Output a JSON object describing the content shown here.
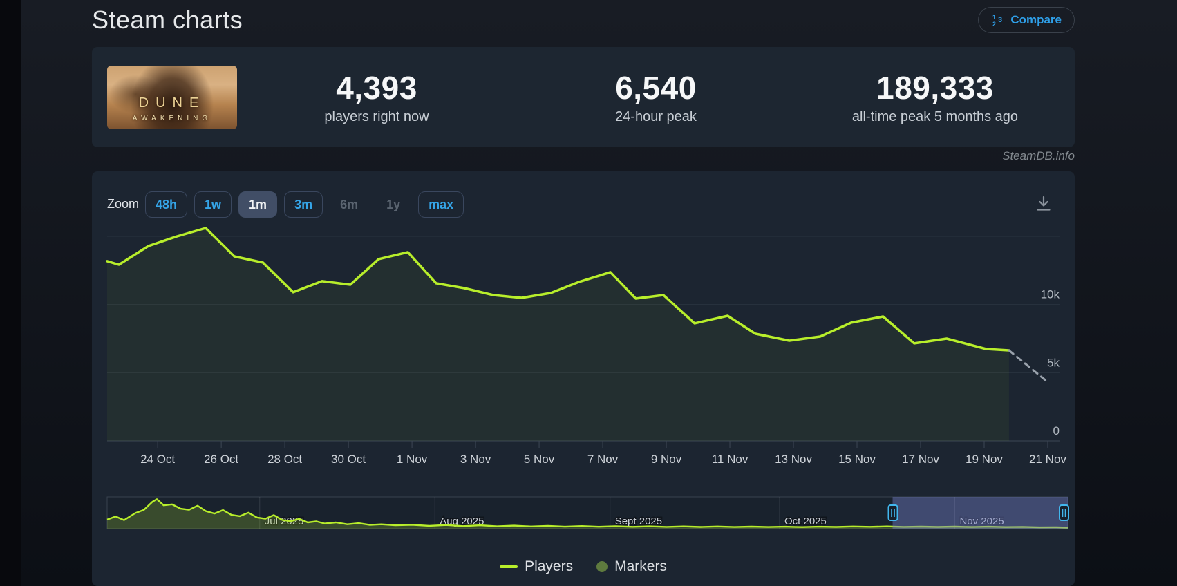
{
  "page": {
    "title": "Steam charts",
    "watermark": "SteamDB.info"
  },
  "compare": {
    "label": "Compare",
    "icon": "ordered-list-123",
    "color": "#2f9fe8"
  },
  "game": {
    "capsule_line1": "DUNE",
    "capsule_line2": "AWAKENING"
  },
  "stats": [
    {
      "value": "4,393",
      "label": "players right now"
    },
    {
      "value": "6,540",
      "label": "24-hour peak"
    },
    {
      "value": "189,333",
      "label": "all-time peak 5 months ago"
    }
  ],
  "toolbar": {
    "zoom_label": "Zoom",
    "buttons": [
      {
        "label": "48h",
        "state": "normal"
      },
      {
        "label": "1w",
        "state": "normal"
      },
      {
        "label": "1m",
        "state": "selected"
      },
      {
        "label": "3m",
        "state": "normal"
      },
      {
        "label": "6m",
        "state": "disabled"
      },
      {
        "label": "1y",
        "state": "disabled"
      },
      {
        "label": "max",
        "state": "normal"
      }
    ],
    "download_icon": "arrow-down-to-line"
  },
  "chart_data": {
    "type": "line",
    "series_name": "Players",
    "line_color": "#b8ee2b",
    "fill_color": "rgba(184,238,43,0.05)",
    "dashed_tail_color": "#9aa2ac",
    "ylim": [
      0,
      16220
    ],
    "y_gridlines": [
      5000,
      10000,
      15000
    ],
    "y_tick_labels": [
      {
        "label": "0",
        "value": 0
      },
      {
        "label": "5k",
        "value": 5000
      },
      {
        "label": "10k",
        "value": 10000
      }
    ],
    "x_range_days": 29.96,
    "x_tick_labels": [
      "24 Oct",
      "26 Oct",
      "28 Oct",
      "30 Oct",
      "1 Nov",
      "3 Nov",
      "5 Nov",
      "7 Nov",
      "9 Nov",
      "11 Nov",
      "13 Nov",
      "15 Nov",
      "17 Nov",
      "19 Nov",
      "21 Nov"
    ],
    "first_tick_day": 1.59,
    "tick_step_days": 2,
    "points": [
      [
        0,
        13180
      ],
      [
        0.37,
        12920
      ],
      [
        1.3,
        14290
      ],
      [
        2.2,
        15000
      ],
      [
        3.1,
        15610
      ],
      [
        4.0,
        13530
      ],
      [
        4.9,
        13080
      ],
      [
        5.85,
        10900
      ],
      [
        6.76,
        11710
      ],
      [
        7.65,
        11450
      ],
      [
        8.54,
        13330
      ],
      [
        9.46,
        13840
      ],
      [
        10.35,
        11560
      ],
      [
        11.24,
        11200
      ],
      [
        12.15,
        10690
      ],
      [
        13.04,
        10490
      ],
      [
        13.96,
        10850
      ],
      [
        14.85,
        11660
      ],
      [
        15.83,
        12370
      ],
      [
        16.63,
        10440
      ],
      [
        17.5,
        10690
      ],
      [
        18.48,
        8620
      ],
      [
        19.52,
        9170
      ],
      [
        20.39,
        7860
      ],
      [
        21.46,
        7350
      ],
      [
        22.43,
        7650
      ],
      [
        23.41,
        8670
      ],
      [
        24.41,
        9120
      ],
      [
        25.39,
        7150
      ],
      [
        26.41,
        7500
      ],
      [
        27.65,
        6740
      ],
      [
        28.37,
        6640
      ]
    ],
    "dashed_tail": [
      [
        28.37,
        6640
      ],
      [
        29.55,
        4393
      ]
    ]
  },
  "navigator_data": {
    "type": "area",
    "line_color": "#b8ee2b",
    "fill_color": "rgba(184,238,43,0.20)",
    "selection_color": "rgba(112,124,196,0.45)",
    "handle_color": "#42b7ee",
    "x_range_days": 170,
    "ymax": 195000,
    "months": [
      {
        "label": "Jul 2025",
        "day": 27
      },
      {
        "label": "Aug 2025",
        "day": 58
      },
      {
        "label": "Sept 2025",
        "day": 89
      },
      {
        "label": "Oct 2025",
        "day": 119
      },
      {
        "label": "Nov 2025",
        "day": 150
      }
    ],
    "selection": {
      "start_day": 139,
      "end_day": 170
    },
    "points": [
      [
        0,
        58000
      ],
      [
        1.5,
        78000
      ],
      [
        3,
        55000
      ],
      [
        5,
        100000
      ],
      [
        6.5,
        120000
      ],
      [
        8,
        172000
      ],
      [
        8.8,
        189333
      ],
      [
        10,
        150000
      ],
      [
        11.5,
        156000
      ],
      [
        13,
        128000
      ],
      [
        14.5,
        121000
      ],
      [
        16,
        147000
      ],
      [
        17.5,
        112000
      ],
      [
        19,
        97000
      ],
      [
        20.5,
        119000
      ],
      [
        22,
        88000
      ],
      [
        23.5,
        80000
      ],
      [
        25,
        103000
      ],
      [
        26.5,
        72000
      ],
      [
        28,
        64000
      ],
      [
        29.5,
        87000
      ],
      [
        31,
        56000
      ],
      [
        32.5,
        48000
      ],
      [
        34,
        63000
      ],
      [
        35.5,
        40000
      ],
      [
        37,
        47000
      ],
      [
        38.5,
        33000
      ],
      [
        40.5,
        40000
      ],
      [
        42.5,
        28000
      ],
      [
        44.5,
        35000
      ],
      [
        46.5,
        24000
      ],
      [
        48.5,
        28000
      ],
      [
        51,
        22000
      ],
      [
        54,
        25000
      ],
      [
        57,
        18000
      ],
      [
        60,
        23500
      ],
      [
        63,
        16500
      ],
      [
        66,
        21500
      ],
      [
        69,
        15000
      ],
      [
        72,
        19500
      ],
      [
        75,
        14000
      ],
      [
        78,
        18000
      ],
      [
        81,
        13000
      ],
      [
        84,
        17000
      ],
      [
        87,
        12500
      ],
      [
        90,
        16000
      ],
      [
        93,
        12000
      ],
      [
        96,
        15000
      ],
      [
        99,
        11500
      ],
      [
        102,
        14500
      ],
      [
        105,
        11000
      ],
      [
        108,
        14000
      ],
      [
        111,
        10500
      ],
      [
        114,
        13500
      ],
      [
        117,
        10500
      ],
      [
        120,
        13000
      ],
      [
        123,
        10000
      ],
      [
        126,
        13000
      ],
      [
        129,
        11000
      ],
      [
        132,
        14000
      ],
      [
        135,
        12000
      ],
      [
        138,
        14500
      ],
      [
        141,
        11500
      ],
      [
        144,
        13500
      ],
      [
        147,
        11000
      ],
      [
        150,
        13200
      ],
      [
        153,
        10800
      ],
      [
        156,
        12800
      ],
      [
        159,
        10000
      ],
      [
        162,
        11500
      ],
      [
        165,
        8500
      ],
      [
        168,
        9500
      ],
      [
        170,
        6500
      ]
    ]
  },
  "legend": [
    {
      "label": "Players",
      "swatch": "line",
      "color": "#b8ee2b"
    },
    {
      "label": "Markers",
      "swatch": "circle",
      "color": "#5e7a3e"
    }
  ]
}
